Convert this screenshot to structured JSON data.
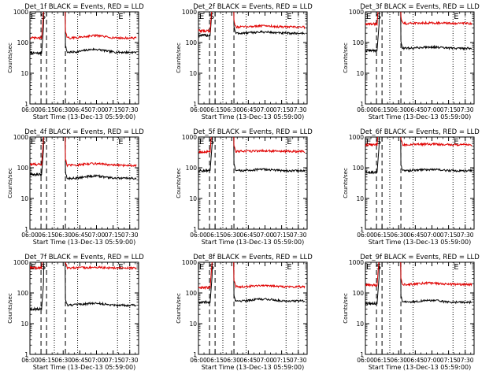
{
  "shared": {
    "xlabel": "Start Time (13-Dec-13 05:59:00)",
    "ylabel": "Counts/sec",
    "x_tick_labels": [
      "06:00",
      "06:15",
      "06:30",
      "06:45",
      "07:00",
      "07:15",
      "07:30"
    ],
    "y_tick_labels": [
      "1",
      "10",
      "100",
      "1000"
    ],
    "y_scale": "log",
    "ylim": [
      1,
      1000
    ],
    "xlim_minutes_after_06_00": [
      0,
      98
    ],
    "markers": {
      "dashed_lines_minutes": [
        10,
        15,
        32
      ],
      "dotted_lines_minutes": [
        22,
        43,
        79,
        90
      ],
      "E_label": "E",
      "S_label": "S",
      "E_positions_minutes": [
        3,
        82
      ],
      "S_position_minutes": 12
    },
    "colors": {
      "events": "#000000",
      "lld": "#e00000"
    }
  },
  "chart_data": [
    {
      "type": "line",
      "title": "Det_1f BLACK = Events, RED = LLD",
      "series": [
        {
          "name": "Events",
          "color": "#000000",
          "pre": 45,
          "post": 48,
          "bump": 1.25
        },
        {
          "name": "LLD",
          "color": "#e00000",
          "pre": 140,
          "post": 140,
          "bump": 1.2
        }
      ]
    },
    {
      "type": "line",
      "title": "Det_2f BLACK = Events, RED = LLD",
      "series": [
        {
          "name": "Events",
          "color": "#000000",
          "pre": 170,
          "post": 200,
          "bump": 1.1
        },
        {
          "name": "LLD",
          "color": "#e00000",
          "pre": 240,
          "post": 320,
          "bump": 1.1
        }
      ]
    },
    {
      "type": "line",
      "title": "Det_3f BLACK = Events, RED = LLD",
      "series": [
        {
          "name": "Events",
          "color": "#000000",
          "pre": 55,
          "post": 65,
          "bump": 1.1
        },
        {
          "name": "LLD",
          "color": "#e00000",
          "pre": 400,
          "post": 420,
          "bump": 1.05
        }
      ]
    },
    {
      "type": "line",
      "title": "Det_4f BLACK = Events, RED = LLD",
      "series": [
        {
          "name": "Events",
          "color": "#000000",
          "pre": 60,
          "post": 45,
          "bump": 1.2
        },
        {
          "name": "LLD",
          "color": "#e00000",
          "pre": 130,
          "post": 120,
          "bump": 1.15
        }
      ]
    },
    {
      "type": "line",
      "title": "Det_5f BLACK = Events, RED = LLD",
      "series": [
        {
          "name": "Events",
          "color": "#000000",
          "pre": 80,
          "post": 80,
          "bump": 1.1
        },
        {
          "name": "LLD",
          "color": "#e00000",
          "pre": 330,
          "post": 340,
          "bump": 1.05
        }
      ]
    },
    {
      "type": "line",
      "title": "Det_6f BLACK = Events, RED = LLD",
      "series": [
        {
          "name": "Events",
          "color": "#000000",
          "pre": 70,
          "post": 80,
          "bump": 1.1
        },
        {
          "name": "LLD",
          "color": "#e00000",
          "pre": 560,
          "post": 560,
          "bump": 1.05
        }
      ]
    },
    {
      "type": "line",
      "title": "Det_7f BLACK = Events, RED = LLD",
      "series": [
        {
          "name": "Events",
          "color": "#000000",
          "pre": 30,
          "post": 40,
          "bump": 1.15
        },
        {
          "name": "LLD",
          "color": "#e00000",
          "pre": 650,
          "post": 650,
          "bump": 1.05
        }
      ]
    },
    {
      "type": "line",
      "title": "Det_8f BLACK = Events, RED = LLD",
      "series": [
        {
          "name": "Events",
          "color": "#000000",
          "pre": 50,
          "post": 55,
          "bump": 1.15
        },
        {
          "name": "LLD",
          "color": "#e00000",
          "pre": 150,
          "post": 160,
          "bump": 1.1
        }
      ]
    },
    {
      "type": "line",
      "title": "Det_9f BLACK = Events, RED = LLD",
      "series": [
        {
          "name": "Events",
          "color": "#000000",
          "pre": 45,
          "post": 50,
          "bump": 1.15
        },
        {
          "name": "LLD",
          "color": "#e00000",
          "pre": 180,
          "post": 190,
          "bump": 1.1
        }
      ]
    }
  ]
}
